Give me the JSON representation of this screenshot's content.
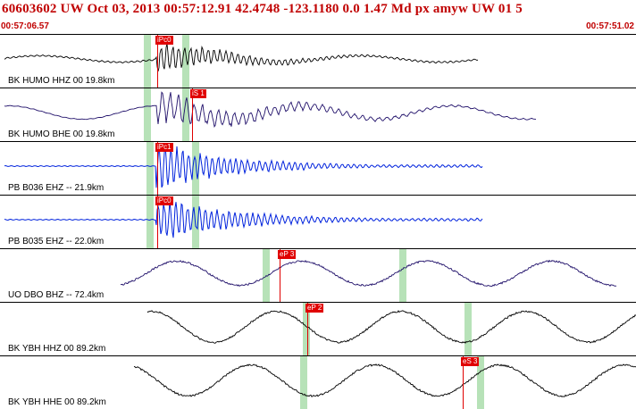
{
  "header": {
    "title": "60603602 UW Oct 03, 2013 00:57:12.91   42.4748 -123.1180  0.0 1.47 Md px amyw UW 01   5",
    "start_time": "00:57:06.57",
    "end_time": "00:57:51.02"
  },
  "colors": {
    "trace_broadband": "#000000",
    "trace_bh": "#20106a",
    "trace_strain": "#0022dd",
    "pick": "#e00000",
    "window": "#9fd8a0",
    "header_text": "#c00000"
  },
  "channels": [
    {
      "label": "BK HUMO HHZ 00 19.8km",
      "color": "#000000",
      "onset": 0.245,
      "amp": 0.55,
      "style": "hh",
      "pick_label": "iPc0",
      "pick_x": 0.247,
      "windows": [
        0.226,
        0.287
      ]
    },
    {
      "label": "BK HUMO BHE 00 19.8km",
      "color": "#20106a",
      "onset": 0.245,
      "amp": 0.6,
      "style": "bh",
      "pick_label": "iS 1",
      "pick_x": 0.302,
      "windows": [
        0.226,
        0.287
      ]
    },
    {
      "label": "PB B036 EHZ -- 21.9km",
      "color": "#0022dd",
      "onset": 0.245,
      "amp": 0.8,
      "style": "strain",
      "pick_label": "iPc1",
      "pick_x": 0.247,
      "windows": [
        0.231,
        0.302
      ]
    },
    {
      "label": "PB B035 EHZ -- 22.0km",
      "color": "#0022dd",
      "onset": 0.245,
      "amp": 0.8,
      "style": "strain",
      "pick_label": "iPc0",
      "pick_x": 0.247,
      "windows": [
        0.231,
        0.302
      ]
    },
    {
      "label": "UO DBO BHZ -- 72.4km",
      "color": "#20106a",
      "onset": 0.19,
      "amp": 0.55,
      "style": "long",
      "pick_label": "eP 3",
      "pick_x": 0.44,
      "windows": [
        0.413,
        0.628
      ]
    },
    {
      "label": "BK YBH HHZ 00 89.2km",
      "color": "#000000",
      "onset": 0.225,
      "amp": 0.7,
      "style": "long",
      "pick_label": "eP 2",
      "pick_x": 0.483,
      "windows": [
        0.476,
        0.73
      ]
    },
    {
      "label": "BK YBH HHE 00 89.2km",
      "color": "#000000",
      "onset": 0.225,
      "amp": 0.7,
      "style": "long",
      "pick_label": "eS 3",
      "pick_x": 0.728,
      "windows": [
        0.472,
        0.75
      ]
    }
  ]
}
